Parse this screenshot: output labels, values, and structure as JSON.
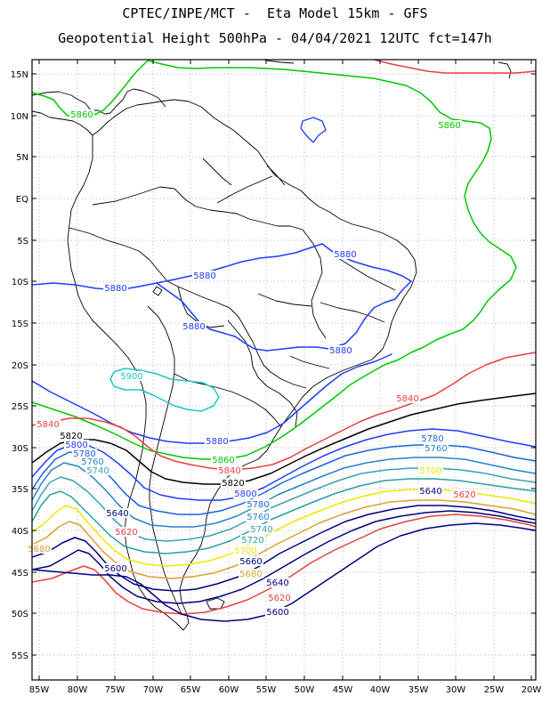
{
  "title_line1": "CPTEC/INPE/MCT -  Eta Model 15km - GFS",
  "title_line2": "Geopotential Height 500hPa - 04/04/2021 12UTC fct=147h",
  "lat_ticks": [
    "15N",
    "10N",
    "5N",
    "EQ",
    "5S",
    "10S",
    "15S",
    "20S",
    "25S",
    "30S",
    "35S",
    "40S",
    "45S",
    "50S",
    "55S"
  ],
  "lon_ticks": [
    "85W",
    "80W",
    "75W",
    "70W",
    "65W",
    "60W",
    "55W",
    "50W",
    "45W",
    "40W",
    "35W",
    "30W",
    "25W",
    "20W"
  ],
  "contour_colors": {
    "5900": "#1ec8c8",
    "5880": "#1e3cff",
    "5860": "#00c800",
    "5840": "#e84040",
    "5820": "#000000",
    "5800": "#1e3cff",
    "5780": "#1e64dc",
    "5760": "#2882c8",
    "5740": "#3ca0b4",
    "5720": "#28a0a0",
    "5700": "#f0e600",
    "5680": "#dca032",
    "5660": "#000080",
    "5640": "#000080",
    "5620": "#e84040",
    "5600": "#000080"
  },
  "labels": [
    {
      "text": "5860",
      "color": "5860"
    },
    {
      "text": "5860",
      "color": "5860"
    },
    {
      "text": "5880",
      "color": "5880"
    },
    {
      "text": "5880",
      "color": "5880"
    },
    {
      "text": "5880",
      "color": "5880"
    },
    {
      "text": "5880",
      "color": "5880"
    },
    {
      "text": "5880",
      "color": "5880"
    },
    {
      "text": "5900",
      "color": "5900"
    },
    {
      "text": "5840",
      "color": "5840"
    },
    {
      "text": "5840",
      "color": "5840"
    },
    {
      "text": "5820",
      "color": "5820"
    },
    {
      "text": "5800",
      "color": "5800"
    },
    {
      "text": "5780",
      "color": "5780"
    },
    {
      "text": "5760",
      "color": "5760"
    },
    {
      "text": "5740",
      "color": "5740"
    },
    {
      "text": "5880",
      "color": "5880"
    },
    {
      "text": "5860",
      "color": "5860"
    },
    {
      "text": "5840",
      "color": "5840"
    },
    {
      "text": "5820",
      "color": "5820"
    },
    {
      "text": "5800",
      "color": "5800"
    },
    {
      "text": "5780",
      "color": "5780"
    },
    {
      "text": "5760",
      "color": "5760"
    },
    {
      "text": "5740",
      "color": "5740"
    },
    {
      "text": "5720",
      "color": "5720"
    },
    {
      "text": "5700",
      "color": "5700"
    },
    {
      "text": "5680",
      "color": "5680"
    },
    {
      "text": "5660",
      "color": "5660"
    },
    {
      "text": "5640",
      "color": "5640"
    },
    {
      "text": "5620",
      "color": "5620"
    },
    {
      "text": "5600",
      "color": "5600"
    },
    {
      "text": "5780",
      "color": "5780"
    },
    {
      "text": "5760",
      "color": "5760"
    },
    {
      "text": "5700",
      "color": "5700"
    },
    {
      "text": "5640",
      "color": "5640"
    },
    {
      "text": "5620",
      "color": "5620"
    },
    {
      "text": "5640",
      "color": "5640"
    },
    {
      "text": "5620",
      "color": "5620"
    },
    {
      "text": "5600",
      "color": "5600"
    },
    {
      "text": "5680",
      "color": "5680"
    }
  ]
}
